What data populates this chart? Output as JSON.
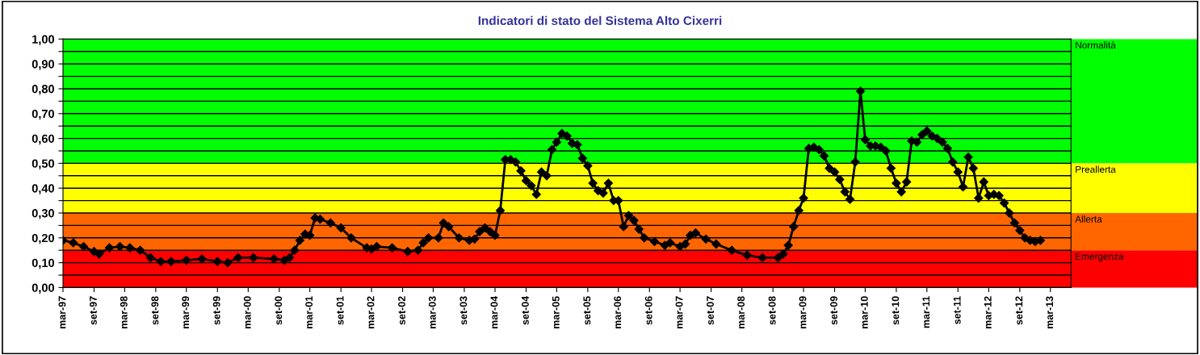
{
  "chart_data": {
    "type": "line",
    "title": "Indicatori di stato del Sistema Alto Cixerri",
    "x": [
      "1997-03",
      "1997-05",
      "1997-07",
      "1997-09",
      "1997-10",
      "1997-12",
      "1998-02",
      "1998-04",
      "1998-06",
      "1998-08",
      "1998-10",
      "1998-12",
      "1999-03",
      "1999-06",
      "1999-09",
      "1999-11",
      "2000-01",
      "2000-04",
      "2000-08",
      "2000-10",
      "2000-11",
      "2000-12",
      "2001-01",
      "2001-02",
      "2001-03",
      "2001-04",
      "2001-05",
      "2001-07",
      "2001-09",
      "2001-11",
      "2002-02",
      "2002-03",
      "2002-04",
      "2002-07",
      "2002-10",
      "2002-12",
      "2003-01",
      "2003-02",
      "2003-04",
      "2003-05",
      "2003-06",
      "2003-08",
      "2003-10",
      "2003-11",
      "2003-12",
      "2004-01",
      "2004-02",
      "2004-03",
      "2004-04",
      "2004-05",
      "2004-06",
      "2004-07",
      "2004-08",
      "2004-09",
      "2004-10",
      "2004-11",
      "2004-12",
      "2005-01",
      "2005-02",
      "2005-03",
      "2005-04",
      "2005-05",
      "2005-06",
      "2005-07",
      "2005-08",
      "2005-09",
      "2005-10",
      "2005-11",
      "2005-12",
      "2006-01",
      "2006-02",
      "2006-03",
      "2006-04",
      "2006-05",
      "2006-06",
      "2006-07",
      "2006-08",
      "2006-10",
      "2006-12",
      "2007-01",
      "2007-03",
      "2007-04",
      "2007-05",
      "2007-06",
      "2007-08",
      "2007-10",
      "2008-01",
      "2008-04",
      "2008-07",
      "2008-10",
      "2008-11",
      "2008-12",
      "2009-01",
      "2009-02",
      "2009-03",
      "2009-04",
      "2009-05",
      "2009-06",
      "2009-07",
      "2009-08",
      "2009-09",
      "2009-10",
      "2009-11",
      "2009-12",
      "2010-01",
      "2010-02",
      "2010-03",
      "2010-04",
      "2010-05",
      "2010-06",
      "2010-07",
      "2010-08",
      "2010-09",
      "2010-10",
      "2010-11",
      "2010-12",
      "2011-01",
      "2011-02",
      "2011-03",
      "2011-04",
      "2011-05",
      "2011-06",
      "2011-07",
      "2011-08",
      "2011-09",
      "2011-10",
      "2011-11",
      "2011-12",
      "2012-01",
      "2012-02",
      "2012-03",
      "2012-04",
      "2012-05",
      "2012-06",
      "2012-07",
      "2012-08",
      "2012-09",
      "2012-10",
      "2012-11",
      "2012-12",
      "2013-01"
    ],
    "series": [
      {
        "color": "#000000",
        "values": [
          0.19,
          0.18,
          0.165,
          0.145,
          0.135,
          0.16,
          0.165,
          0.16,
          0.15,
          0.12,
          0.105,
          0.105,
          0.11,
          0.115,
          0.105,
          0.1,
          0.12,
          0.12,
          0.115,
          0.11,
          0.12,
          0.15,
          0.19,
          0.215,
          0.21,
          0.28,
          0.275,
          0.26,
          0.24,
          0.2,
          0.16,
          0.155,
          0.165,
          0.16,
          0.145,
          0.15,
          0.18,
          0.2,
          0.2,
          0.26,
          0.245,
          0.2,
          0.19,
          0.195,
          0.225,
          0.24,
          0.225,
          0.21,
          0.31,
          0.515,
          0.515,
          0.505,
          0.47,
          0.43,
          0.41,
          0.375,
          0.465,
          0.45,
          0.555,
          0.585,
          0.62,
          0.61,
          0.58,
          0.575,
          0.52,
          0.49,
          0.42,
          0.39,
          0.38,
          0.42,
          0.35,
          0.35,
          0.245,
          0.29,
          0.27,
          0.235,
          0.2,
          0.185,
          0.17,
          0.18,
          0.165,
          0.175,
          0.21,
          0.22,
          0.195,
          0.175,
          0.15,
          0.13,
          0.12,
          0.12,
          0.135,
          0.17,
          0.245,
          0.31,
          0.36,
          0.56,
          0.565,
          0.555,
          0.53,
          0.48,
          0.465,
          0.435,
          0.385,
          0.355,
          0.505,
          0.79,
          0.595,
          0.57,
          0.57,
          0.565,
          0.55,
          0.48,
          0.42,
          0.385,
          0.425,
          0.59,
          0.585,
          0.615,
          0.63,
          0.61,
          0.6,
          0.585,
          0.56,
          0.505,
          0.465,
          0.405,
          0.525,
          0.48,
          0.36,
          0.425,
          0.37,
          0.375,
          0.37,
          0.34,
          0.3,
          0.26,
          0.23,
          0.2,
          0.19,
          0.185,
          0.19
        ]
      }
    ],
    "marker": "diamond",
    "line_style": "solid",
    "grid": "y",
    "xlim": [
      "1997-03",
      "2013-07"
    ],
    "xticks": [
      {
        "value": "1997-03",
        "label": "mar-97"
      },
      {
        "value": "1997-09",
        "label": "set-97"
      },
      {
        "value": "1998-03",
        "label": "mar-98"
      },
      {
        "value": "1998-09",
        "label": "set-98"
      },
      {
        "value": "1999-03",
        "label": "mar-99"
      },
      {
        "value": "1999-09",
        "label": "set-99"
      },
      {
        "value": "2000-03",
        "label": "mar-00"
      },
      {
        "value": "2000-09",
        "label": "set-00"
      },
      {
        "value": "2001-03",
        "label": "mar-01"
      },
      {
        "value": "2001-09",
        "label": "set-01"
      },
      {
        "value": "2002-03",
        "label": "mar-02"
      },
      {
        "value": "2002-09",
        "label": "set-02"
      },
      {
        "value": "2003-03",
        "label": "mar-03"
      },
      {
        "value": "2003-09",
        "label": "set-03"
      },
      {
        "value": "2004-03",
        "label": "mar-04"
      },
      {
        "value": "2004-09",
        "label": "set-04"
      },
      {
        "value": "2005-03",
        "label": "mar-05"
      },
      {
        "value": "2005-09",
        "label": "set-05"
      },
      {
        "value": "2006-03",
        "label": "mar-06"
      },
      {
        "value": "2006-09",
        "label": "set-06"
      },
      {
        "value": "2007-03",
        "label": "mar-07"
      },
      {
        "value": "2007-09",
        "label": "set-07"
      },
      {
        "value": "2008-03",
        "label": "mar-08"
      },
      {
        "value": "2008-09",
        "label": "set-08"
      },
      {
        "value": "2009-03",
        "label": "mar-09"
      },
      {
        "value": "2009-09",
        "label": "set-09"
      },
      {
        "value": "2010-03",
        "label": "mar-10"
      },
      {
        "value": "2010-09",
        "label": "set-10"
      },
      {
        "value": "2011-03",
        "label": "mar-11"
      },
      {
        "value": "2011-09",
        "label": "set-11"
      },
      {
        "value": "2012-03",
        "label": "mar-12"
      },
      {
        "value": "2012-09",
        "label": "set-12"
      },
      {
        "value": "2013-03",
        "label": "mar-13"
      }
    ],
    "ylim": [
      0,
      1
    ],
    "yticks": [
      {
        "value": 0,
        "label": "0,00"
      },
      {
        "value": 0.05,
        "label": null
      },
      {
        "value": 0.1,
        "label": "0,10"
      },
      {
        "value": 0.15,
        "label": null
      },
      {
        "value": 0.2,
        "label": "0,20"
      },
      {
        "value": 0.25,
        "label": null
      },
      {
        "value": 0.3,
        "label": "0,30"
      },
      {
        "value": 0.35,
        "label": null
      },
      {
        "value": 0.4,
        "label": "0,40"
      },
      {
        "value": 0.45,
        "label": null
      },
      {
        "value": 0.5,
        "label": "0,50"
      },
      {
        "value": 0.55,
        "label": null
      },
      {
        "value": 0.6,
        "label": "0,60"
      },
      {
        "value": 0.65,
        "label": null
      },
      {
        "value": 0.7,
        "label": "0,70"
      },
      {
        "value": 0.75,
        "label": null
      },
      {
        "value": 0.8,
        "label": "0,80"
      },
      {
        "value": 0.85,
        "label": null
      },
      {
        "value": 0.9,
        "label": "0,90"
      },
      {
        "value": 0.95,
        "label": null
      },
      {
        "value": 1,
        "label": "1,00"
      }
    ],
    "bands": [
      {
        "axis": "y",
        "from": 0.5,
        "to": 1,
        "label": "Normalità",
        "color": "#00ff00"
      },
      {
        "axis": "y",
        "from": 0.3,
        "to": 0.5,
        "label": "Preallerta",
        "color": "#ffff00"
      },
      {
        "axis": "y",
        "from": 0.15,
        "to": 0.3,
        "label": "Allerta",
        "color": "#ff6600"
      },
      {
        "axis": "y",
        "from": 0,
        "to": 0.15,
        "label": "Emergenza",
        "color": "#ff0000"
      }
    ]
  }
}
